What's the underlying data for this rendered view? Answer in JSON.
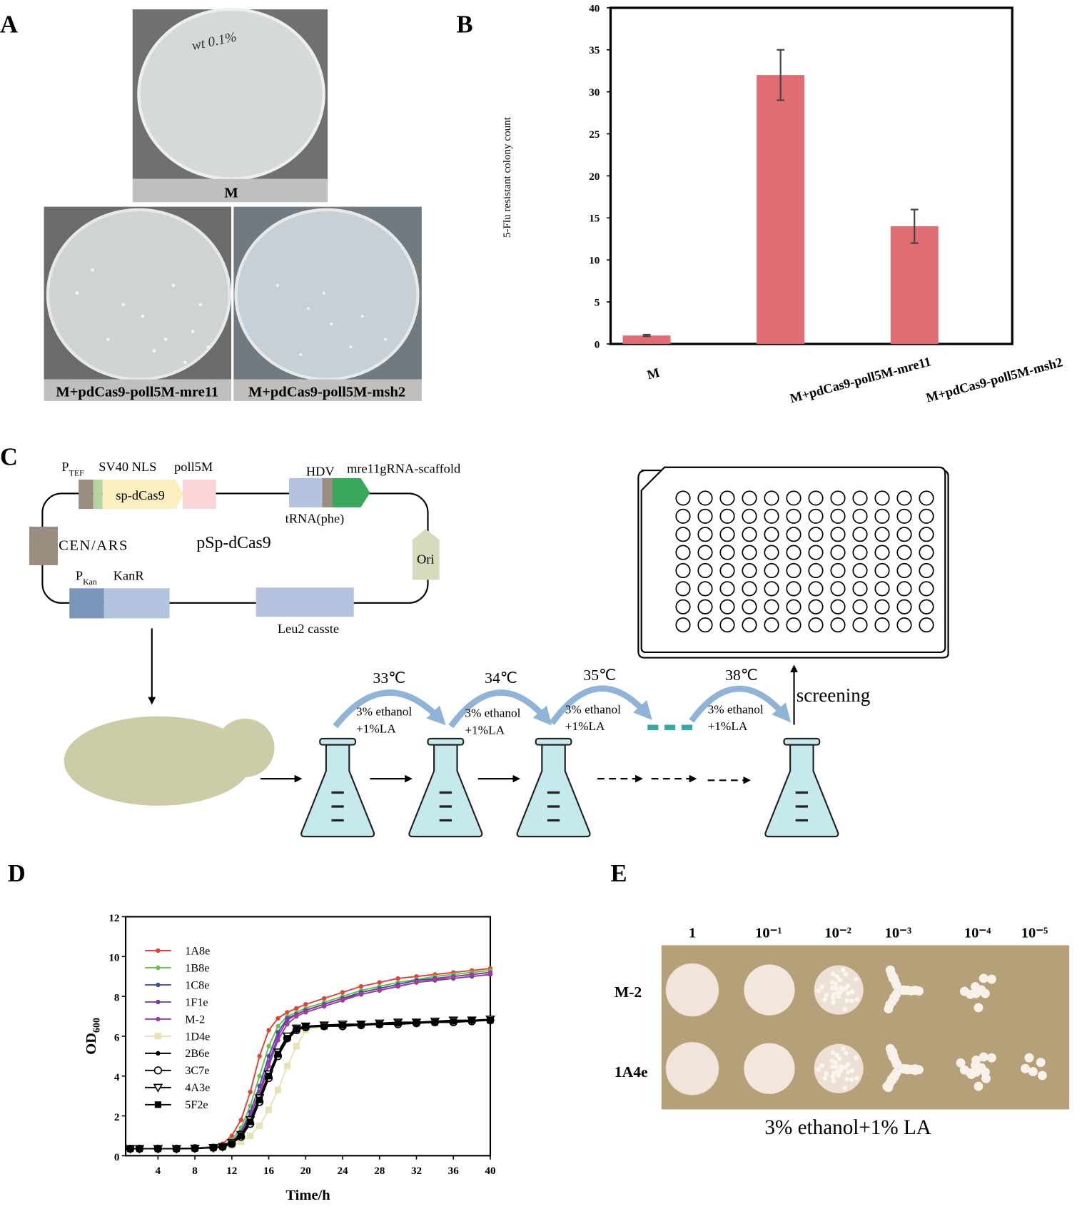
{
  "figure": {
    "panel_labels": [
      "A",
      "B",
      "C",
      "D",
      "E"
    ],
    "panel_a": {
      "plate_note": "wt 0.1%",
      "captions": [
        "M",
        "M+pdCas9-poll5M-mre11",
        "M+pdCas9-poll5M-msh2"
      ]
    },
    "panel_c": {
      "promoter_tef": {
        "main": "P",
        "sub": "TEF"
      },
      "nls": "SV40 NLS",
      "poll5m": "poll5M",
      "dcas9": "sp-dCas9",
      "hdv": "HDV",
      "scaffold": "mre11gRNA-scaffold",
      "trna": "tRNA(phe)",
      "cen_ars": "CEN/ARS",
      "plasmid": "pSp-dCas9",
      "ori": "Ori",
      "promoter_kan": {
        "main": "P",
        "sub": "Kan"
      },
      "kanr": "KanR",
      "leu2": "Leu2 casste",
      "steps": [
        {
          "temp": "33℃",
          "condition": [
            "3% ethanol",
            "+1%LA"
          ]
        },
        {
          "temp": "34℃",
          "condition": [
            "3% ethanol",
            "+1%LA"
          ]
        },
        {
          "temp": "35℃",
          "condition": [
            "3% ethanol",
            "+1%LA"
          ]
        },
        {
          "temp": "38℃",
          "condition": [
            "3% ethanol",
            "+1%LA"
          ]
        }
      ],
      "screening": "screening"
    },
    "panel_e": {
      "dilutions": [
        "1",
        "10⁻¹",
        "10⁻²",
        "10⁻³",
        "10⁻⁴",
        "10⁻⁵"
      ],
      "strains": [
        "M-2",
        "1A4e"
      ],
      "caption": "3% ethanol+1% LA"
    }
  },
  "chart_data": [
    {
      "type": "bar",
      "ylabel": "5-Flu resistant colony count",
      "categories": [
        "M",
        "M+pdCas9-poll5M-mre11",
        "M+pdCas9-poll5M-msh2"
      ],
      "values": [
        1,
        32,
        14
      ],
      "errors": [
        0.1,
        3,
        2
      ],
      "color": "#e06c74",
      "ylim": [
        0,
        40
      ],
      "yticks": [
        0,
        5,
        10,
        15,
        20,
        25,
        30,
        35,
        40
      ]
    },
    {
      "type": "line",
      "xlabel": "Time/h",
      "ylabel": {
        "main": "OD",
        "sub": "600"
      },
      "x": [
        1,
        2,
        4,
        6,
        8,
        10,
        11,
        12,
        13,
        14,
        15,
        16,
        17,
        18,
        19,
        20,
        22,
        24,
        26,
        28,
        30,
        32,
        34,
        36,
        38,
        40
      ],
      "xlim": [
        0.5,
        40
      ],
      "xticks": [
        4,
        8,
        12,
        16,
        20,
        24,
        28,
        32,
        36,
        40
      ],
      "ylim": [
        0,
        12
      ],
      "yticks": [
        0,
        2,
        4,
        6,
        8,
        10,
        12
      ],
      "series": [
        {
          "name": "1A8e",
          "color": "#e0413a",
          "marker": "dot",
          "values": [
            0.35,
            0.35,
            0.35,
            0.35,
            0.38,
            0.45,
            0.6,
            1.0,
            1.8,
            3.2,
            5.0,
            6.3,
            6.9,
            7.2,
            7.4,
            7.6,
            7.9,
            8.2,
            8.5,
            8.7,
            8.9,
            9.0,
            9.1,
            9.2,
            9.3,
            9.4
          ]
        },
        {
          "name": "1B8e",
          "color": "#6cbf4a",
          "marker": "dot",
          "values": [
            0.35,
            0.35,
            0.35,
            0.35,
            0.38,
            0.42,
            0.5,
            0.8,
            1.4,
            2.5,
            4.0,
            5.5,
            6.5,
            7.0,
            7.2,
            7.4,
            7.7,
            8.0,
            8.3,
            8.5,
            8.7,
            8.85,
            9.0,
            9.1,
            9.2,
            9.3
          ]
        },
        {
          "name": "1C8e",
          "color": "#4a4aa8",
          "marker": "dot",
          "values": [
            0.35,
            0.35,
            0.35,
            0.35,
            0.37,
            0.4,
            0.45,
            0.7,
            1.2,
            2.2,
            3.5,
            5.0,
            6.2,
            6.9,
            7.1,
            7.3,
            7.6,
            7.9,
            8.2,
            8.4,
            8.6,
            8.8,
            8.9,
            9.0,
            9.1,
            9.2
          ]
        },
        {
          "name": "1F1e",
          "color": "#7a3fa6",
          "marker": "dot",
          "values": [
            0.35,
            0.35,
            0.35,
            0.35,
            0.37,
            0.4,
            0.45,
            0.65,
            1.1,
            2.0,
            3.2,
            4.7,
            6.0,
            6.8,
            7.1,
            7.3,
            7.6,
            7.9,
            8.1,
            8.3,
            8.5,
            8.7,
            8.8,
            8.9,
            9.0,
            9.1
          ]
        },
        {
          "name": "M-2",
          "color": "#9b3f9b",
          "marker": "dot",
          "values": [
            0.35,
            0.35,
            0.35,
            0.35,
            0.37,
            0.4,
            0.45,
            0.6,
            1.0,
            1.8,
            3.0,
            4.5,
            5.8,
            6.6,
            7.0,
            7.2,
            7.5,
            7.8,
            8.1,
            8.3,
            8.5,
            8.7,
            8.85,
            9.0,
            9.1,
            9.2
          ]
        },
        {
          "name": "1D4e",
          "color": "#e8e2b8",
          "marker": "square",
          "values": [
            0.35,
            0.35,
            0.35,
            0.35,
            0.36,
            0.38,
            0.42,
            0.5,
            0.7,
            1.0,
            1.5,
            2.3,
            3.3,
            4.5,
            5.5,
            6.3,
            6.5,
            6.55,
            6.6,
            6.6,
            6.65,
            6.7,
            6.7,
            6.75,
            6.8,
            6.8
          ]
        },
        {
          "name": "2B6e",
          "color": "#000000",
          "marker": "dot",
          "values": [
            0.35,
            0.35,
            0.35,
            0.35,
            0.37,
            0.4,
            0.45,
            0.6,
            1.0,
            1.7,
            2.8,
            4.0,
            5.0,
            5.8,
            6.3,
            6.5,
            6.5,
            6.55,
            6.6,
            6.6,
            6.65,
            6.7,
            6.7,
            6.75,
            6.8,
            6.8
          ]
        },
        {
          "name": "3C7e",
          "color": "#000000",
          "marker": "open-circle",
          "values": [
            0.35,
            0.35,
            0.35,
            0.35,
            0.37,
            0.4,
            0.45,
            0.6,
            0.95,
            1.6,
            2.7,
            3.9,
            5.0,
            5.9,
            6.3,
            6.45,
            6.5,
            6.5,
            6.55,
            6.6,
            6.6,
            6.65,
            6.7,
            6.7,
            6.75,
            6.8
          ]
        },
        {
          "name": "4A3e",
          "color": "#000000",
          "marker": "open-triangle",
          "values": [
            0.35,
            0.35,
            0.35,
            0.35,
            0.37,
            0.4,
            0.45,
            0.65,
            1.05,
            1.8,
            2.9,
            4.1,
            5.2,
            6.0,
            6.4,
            6.5,
            6.55,
            6.6,
            6.6,
            6.65,
            6.7,
            6.7,
            6.75,
            6.8,
            6.8,
            6.85
          ]
        },
        {
          "name": "5F2e",
          "color": "#000000",
          "marker": "square",
          "values": [
            0.35,
            0.35,
            0.35,
            0.35,
            0.37,
            0.4,
            0.45,
            0.6,
            1.0,
            1.7,
            2.8,
            4.0,
            5.1,
            5.9,
            6.35,
            6.5,
            6.5,
            6.55,
            6.6,
            6.6,
            6.65,
            6.7,
            6.7,
            6.75,
            6.8,
            6.8
          ]
        }
      ]
    }
  ]
}
